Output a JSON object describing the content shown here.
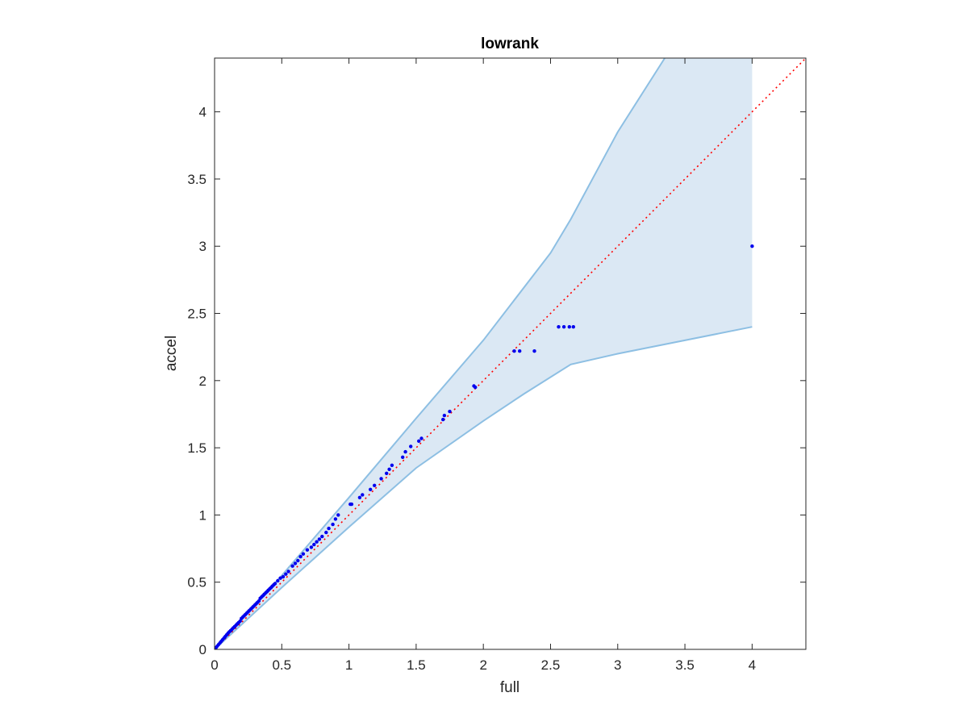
{
  "chart_data": {
    "type": "scatter",
    "title": "lowrank",
    "xlabel": "full",
    "ylabel": "accel",
    "xlim": [
      0,
      4.4
    ],
    "ylim": [
      0,
      4.4
    ],
    "xticks": [
      0,
      0.5,
      1,
      1.5,
      2,
      2.5,
      3,
      3.5,
      4
    ],
    "xtick_labels": [
      "0",
      "0.5",
      "1",
      "1.5",
      "2",
      "2.5",
      "3",
      "3.5",
      "4"
    ],
    "yticks": [
      0,
      0.5,
      1,
      1.5,
      2,
      2.5,
      3,
      3.5,
      4
    ],
    "ytick_labels": [
      "0",
      "0.5",
      "1",
      "1.5",
      "2",
      "2.5",
      "3",
      "3.5",
      "4"
    ],
    "grid": false,
    "band": {
      "upper": [
        [
          0,
          0
        ],
        [
          0.5,
          0.55
        ],
        [
          1,
          1.13
        ],
        [
          1.5,
          1.72
        ],
        [
          2,
          2.3
        ],
        [
          2.5,
          2.95
        ],
        [
          2.65,
          3.2
        ],
        [
          3,
          3.85
        ],
        [
          3.35,
          4.4
        ],
        [
          4,
          4.4
        ]
      ],
      "lower": [
        [
          0,
          0
        ],
        [
          0.5,
          0.46
        ],
        [
          1,
          0.91
        ],
        [
          1.5,
          1.35
        ],
        [
          2,
          1.7
        ],
        [
          2.3,
          1.9
        ],
        [
          2.65,
          2.12
        ],
        [
          3,
          2.2
        ],
        [
          4,
          2.4
        ]
      ],
      "fill_color": "#dbe8f4",
      "edge_color": "#8dbfe3"
    },
    "reference_line": {
      "x": [
        0,
        4.4
      ],
      "y": [
        0,
        4.4
      ],
      "color": "#ff0000",
      "style": "dotted"
    },
    "points": {
      "color": "#0000ee",
      "x": [
        0.01,
        0.02,
        0.03,
        0.04,
        0.05,
        0.06,
        0.07,
        0.08,
        0.09,
        0.1,
        0.11,
        0.12,
        0.13,
        0.14,
        0.15,
        0.16,
        0.17,
        0.18,
        0.19,
        0.2,
        0.21,
        0.22,
        0.23,
        0.24,
        0.25,
        0.26,
        0.27,
        0.28,
        0.29,
        0.3,
        0.31,
        0.32,
        0.33,
        0.34,
        0.35,
        0.36,
        0.37,
        0.38,
        0.39,
        0.4,
        0.41,
        0.42,
        0.43,
        0.44,
        0.45,
        0.47,
        0.49,
        0.51,
        0.53,
        0.55,
        0.58,
        0.6,
        0.62,
        0.64,
        0.66,
        0.69,
        0.72,
        0.74,
        0.76,
        0.78,
        0.8,
        0.83,
        0.85,
        0.88,
        0.9,
        0.92,
        1.01,
        1.02,
        1.08,
        1.1,
        1.16,
        1.19,
        1.24,
        1.28,
        1.3,
        1.32,
        1.4,
        1.42,
        1.46,
        1.52,
        1.54,
        1.7,
        1.71,
        1.75,
        1.93,
        1.94,
        2.23,
        2.27,
        2.38,
        2.56,
        2.6,
        2.64,
        2.67,
        4.0
      ],
      "y": [
        0.012,
        0.024,
        0.036,
        0.048,
        0.06,
        0.072,
        0.084,
        0.096,
        0.108,
        0.12,
        0.13,
        0.14,
        0.15,
        0.16,
        0.17,
        0.18,
        0.19,
        0.2,
        0.21,
        0.23,
        0.24,
        0.25,
        0.26,
        0.27,
        0.28,
        0.29,
        0.3,
        0.31,
        0.32,
        0.33,
        0.34,
        0.35,
        0.36,
        0.38,
        0.39,
        0.4,
        0.41,
        0.42,
        0.43,
        0.44,
        0.45,
        0.46,
        0.47,
        0.48,
        0.49,
        0.51,
        0.53,
        0.54,
        0.56,
        0.58,
        0.62,
        0.64,
        0.66,
        0.69,
        0.71,
        0.74,
        0.76,
        0.78,
        0.8,
        0.82,
        0.84,
        0.87,
        0.9,
        0.93,
        0.97,
        1.0,
        1.08,
        1.08,
        1.13,
        1.15,
        1.19,
        1.22,
        1.27,
        1.31,
        1.34,
        1.37,
        1.43,
        1.47,
        1.51,
        1.55,
        1.57,
        1.71,
        1.74,
        1.77,
        1.96,
        1.95,
        2.22,
        2.22,
        2.22,
        2.4,
        2.4,
        2.4,
        2.4,
        3.0
      ]
    }
  }
}
